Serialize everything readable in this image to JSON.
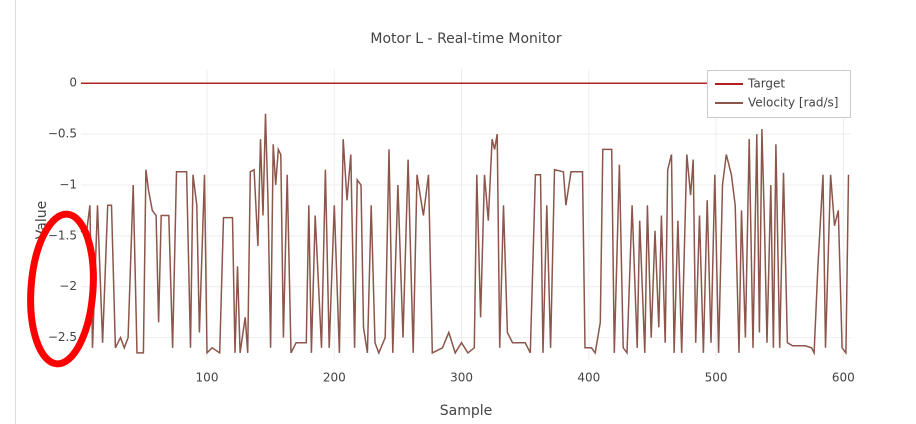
{
  "chart_data": {
    "type": "line",
    "title": "Motor L - Real-time Monitor",
    "x_label": "Sample",
    "y_label": "Value",
    "xlim": [
      1,
      606
    ],
    "xticks": [
      100,
      200,
      300,
      400,
      500,
      600
    ],
    "ylim": [
      -2.72,
      0.14
    ],
    "yticks": [
      {
        "value": 0,
        "label": "0"
      },
      {
        "value": -0.5,
        "label": "−0.5"
      },
      {
        "value": -1,
        "label": "−1"
      },
      {
        "value": -1.5,
        "label": "−1.5"
      },
      {
        "value": -2,
        "label": "−2"
      },
      {
        "value": -2.5,
        "label": "−2.5"
      }
    ],
    "grid": true,
    "legend_position": "top-right",
    "series": [
      {
        "name": "Target",
        "color": "#b22222",
        "x": [
          1,
          606
        ],
        "values": [
          0,
          0
        ]
      },
      {
        "name": "Velocity [rad/s]",
        "color": "#8c564b",
        "x": [
          1,
          5,
          8,
          10,
          14,
          18,
          22,
          25,
          28,
          32,
          35,
          38,
          42,
          45,
          50,
          52,
          54,
          57,
          60,
          62,
          64,
          70,
          73,
          76,
          84,
          87,
          89,
          92,
          94,
          98,
          100,
          104,
          110,
          113,
          120,
          122,
          124,
          126,
          130,
          132,
          134,
          137,
          140,
          142,
          144,
          146,
          148,
          150,
          152,
          154,
          156,
          158,
          160,
          163,
          166,
          170,
          178,
          180,
          182,
          185,
          190,
          193,
          196,
          200,
          204,
          207,
          210,
          213,
          216,
          218,
          221,
          223,
          226,
          229,
          232,
          235,
          240,
          243,
          246,
          250,
          254,
          258,
          262,
          265,
          270,
          274,
          277,
          285,
          290,
          295,
          300,
          305,
          310,
          312,
          315,
          318,
          321,
          324,
          326,
          328,
          330,
          333,
          336,
          340,
          350,
          354,
          358,
          362,
          364,
          367,
          370,
          373,
          380,
          382,
          386,
          395,
          397,
          402,
          405,
          409,
          411,
          418,
          420,
          424,
          427,
          430,
          434,
          438,
          440,
          444,
          446,
          449,
          452,
          455,
          457,
          460,
          462,
          465,
          467,
          470,
          473,
          477,
          480,
          482,
          484,
          487,
          490,
          493,
          496,
          499,
          502,
          505,
          508,
          512,
          515,
          518,
          520,
          523,
          526,
          529,
          532,
          534,
          536,
          538,
          540,
          543,
          545,
          547,
          550,
          553,
          556,
          560,
          570,
          575,
          577,
          580,
          584,
          586,
          590,
          593,
          596,
          599,
          602,
          604
        ],
        "values": [
          -1.45,
          -1.5,
          -1.2,
          -2.6,
          -1.2,
          -2.55,
          -1.2,
          -1.2,
          -2.6,
          -2.5,
          -2.6,
          -2.5,
          -1.0,
          -2.65,
          -2.65,
          -0.85,
          -1.05,
          -1.25,
          -1.3,
          -2.35,
          -1.3,
          -1.3,
          -2.6,
          -0.87,
          -0.87,
          -2.6,
          -0.9,
          -1.2,
          -2.45,
          -0.9,
          -2.65,
          -2.6,
          -2.65,
          -1.32,
          -1.32,
          -2.65,
          -1.8,
          -2.65,
          -2.3,
          -2.65,
          -0.87,
          -0.85,
          -1.6,
          -0.55,
          -1.3,
          -0.3,
          -1.2,
          -2.6,
          -0.6,
          -1.0,
          -0.65,
          -0.7,
          -2.5,
          -0.9,
          -2.65,
          -2.55,
          -2.55,
          -1.2,
          -2.65,
          -1.3,
          -2.6,
          -0.85,
          -2.6,
          -1.2,
          -2.65,
          -0.55,
          -1.15,
          -0.7,
          -2.6,
          -0.95,
          -1.0,
          -2.4,
          -2.65,
          -1.2,
          -2.55,
          -2.65,
          -2.5,
          -0.65,
          -2.65,
          -1.0,
          -2.5,
          -0.75,
          -2.65,
          -0.9,
          -1.3,
          -0.9,
          -2.65,
          -2.6,
          -2.45,
          -2.65,
          -2.55,
          -2.65,
          -2.6,
          -0.9,
          -2.3,
          -0.9,
          -1.35,
          -0.55,
          -0.65,
          -0.5,
          -2.6,
          -1.2,
          -2.45,
          -2.55,
          -2.55,
          -2.65,
          -0.9,
          -0.9,
          -2.65,
          -1.2,
          -2.6,
          -0.85,
          -0.87,
          -1.2,
          -0.87,
          -0.87,
          -2.6,
          -2.6,
          -2.65,
          -2.35,
          -0.65,
          -0.65,
          -2.65,
          -0.8,
          -2.6,
          -2.65,
          -1.2,
          -2.6,
          -1.35,
          -2.65,
          -1.2,
          -2.5,
          -1.45,
          -2.4,
          -1.3,
          -2.55,
          -0.85,
          -0.7,
          -2.65,
          -1.35,
          -2.65,
          -0.7,
          -1.1,
          -0.75,
          -2.55,
          -1.3,
          -2.65,
          -1.15,
          -2.55,
          -0.9,
          -2.65,
          -1.0,
          -0.7,
          -0.9,
          -1.2,
          -2.65,
          -1.25,
          -2.5,
          -0.55,
          -2.6,
          -0.5,
          -2.45,
          -0.45,
          -1.4,
          -2.55,
          -1.0,
          -2.6,
          -0.6,
          -2.6,
          -0.88,
          -2.55,
          -2.58,
          -2.58,
          -2.6,
          -2.65,
          -1.8,
          -0.9,
          -2.6,
          -0.9,
          -1.4,
          -1.25,
          -2.6,
          -2.65,
          -0.9
        ]
      }
    ]
  }
}
